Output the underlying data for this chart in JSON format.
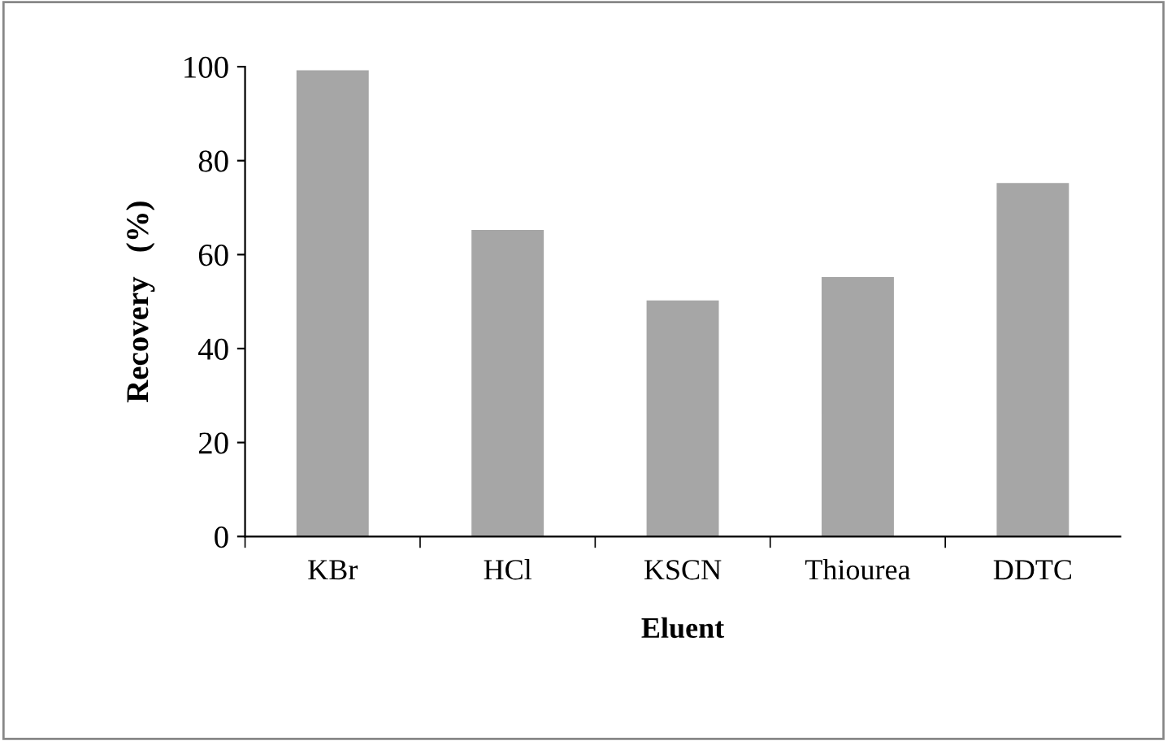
{
  "chart_data": {
    "type": "bar",
    "xlabel": "Eluent",
    "ylabel": "Recovery   (%)",
    "categories": [
      "KBr",
      "HCl",
      "KSCN",
      "Thiourea",
      "DDTC"
    ],
    "values": [
      99,
      65,
      50,
      55,
      75
    ],
    "color": "#a6a6a6",
    "ylim": [
      0,
      100
    ],
    "yticks": [
      0,
      20,
      40,
      60,
      80,
      100
    ],
    "grid": false
  }
}
